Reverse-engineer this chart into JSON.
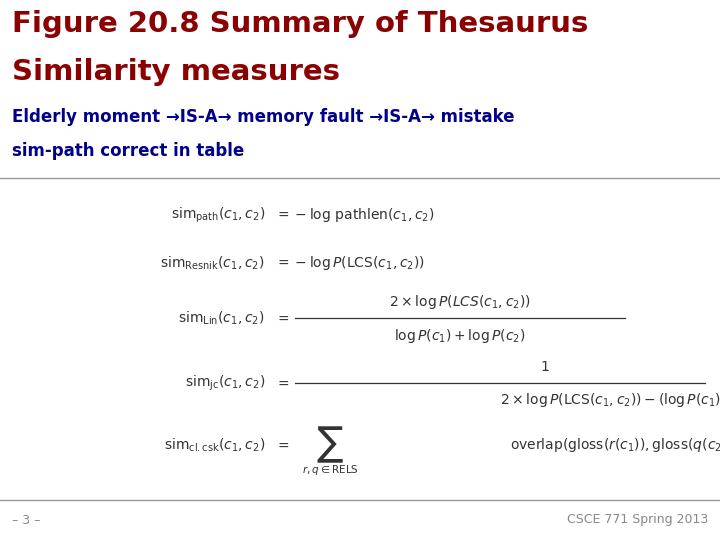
{
  "title_line1": "Figure 20.8 Summary of Thesaurus",
  "title_line2": "Similarity measures",
  "title_color": "#8B0000",
  "subtitle": "Elderly moment →IS-A→ memory fault →IS-A→ mistake",
  "subtitle_color": "#00008B",
  "subsubtitle": "sim-path correct in table",
  "subsubtitle_color": "#00008B",
  "footer_left": "– 3 –",
  "footer_right": "CSCE 771 Spring 2013",
  "footer_color": "#888888",
  "bg_color": "#ffffff",
  "line_color": "#999999",
  "eq_color": "#333333"
}
